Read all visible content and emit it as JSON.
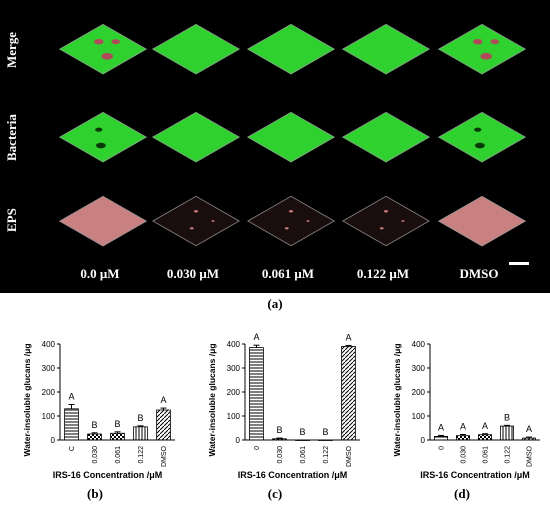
{
  "panel_a": {
    "rows": [
      "Merge",
      "Bacteria",
      "EPS"
    ],
    "columns": [
      "0.0 μM",
      "0.030 μM",
      "0.061 μM",
      "0.122 μM",
      "DMSO"
    ],
    "caption": "(a)",
    "colors": {
      "bacteria": "#2ed12e",
      "eps": "#c98080",
      "merge_red": "#b04a5a",
      "background": "#000000"
    }
  },
  "chart_data": [
    {
      "type": "bar",
      "panel": "(b)",
      "categories": [
        "C",
        "0.030",
        "0.061",
        "0.122",
        "DMSO"
      ],
      "values": [
        130,
        25,
        28,
        55,
        125
      ],
      "errors": [
        18,
        5,
        6,
        4,
        8
      ],
      "letters": [
        "A",
        "B",
        "B",
        "B",
        "A"
      ],
      "ylabel": "Water-insoluble glucans /μg",
      "xlabel": "IRS-16 Concentration /μM",
      "ylim": [
        0,
        400
      ],
      "yticks": [
        0,
        100,
        200,
        300,
        400
      ]
    },
    {
      "type": "bar",
      "panel": "(c)",
      "categories": [
        "0",
        "0.030",
        "0.061",
        "0.122",
        "DMSO"
      ],
      "values": [
        385,
        5,
        0,
        0,
        390
      ],
      "errors": [
        10,
        3,
        0,
        0,
        4
      ],
      "letters": [
        "A",
        "B",
        "B",
        "B",
        "A"
      ],
      "ylabel": "Water-insoluble glucans /μg",
      "xlabel": "IRS-16 Concentration /μM",
      "ylim": [
        0,
        400
      ],
      "yticks": [
        0,
        100,
        200,
        300,
        400
      ]
    },
    {
      "type": "bar",
      "panel": "(d)",
      "categories": [
        "0",
        "0.030",
        "0.061",
        "0.122",
        "DMSO"
      ],
      "values": [
        15,
        18,
        22,
        58,
        8
      ],
      "errors": [
        4,
        5,
        4,
        3,
        4
      ],
      "letters": [
        "A",
        "A",
        "A",
        "B",
        "A"
      ],
      "ylabel": "Water-insoluble glucans /μg",
      "xlabel": "IRS-16 Concentration /μM",
      "ylim": [
        0,
        400
      ],
      "yticks": [
        0,
        100,
        200,
        300,
        400
      ]
    }
  ]
}
